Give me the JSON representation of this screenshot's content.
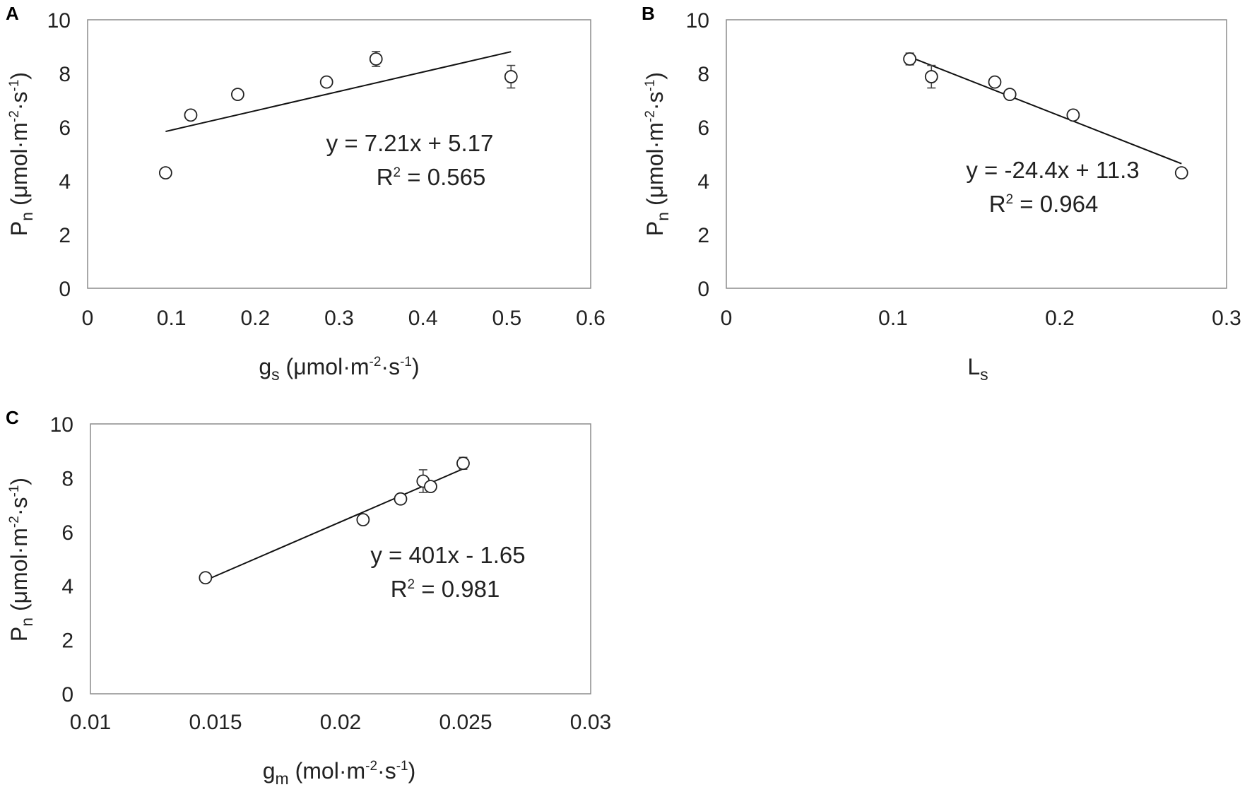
{
  "figure": {
    "panels": [
      {
        "letter": "A",
        "ylabel": {
          "main": "P",
          "sub": "n",
          "unit_a": " (μmol·m",
          "sup_a": "-2",
          "unit_b": "·s",
          "sup_b": "-1",
          "unit_c": ")"
        },
        "xlabel": {
          "main": "g",
          "sub": "s",
          "unit_a": " (μmol·m",
          "sup_a": "-2",
          "unit_b": "·s",
          "sup_b": "-1",
          "unit_c": ")"
        },
        "equation": "y = 7.21x + 5.17",
        "r2": {
          "pre": "R",
          "sup": "2",
          "post": " = 0.565"
        }
      },
      {
        "letter": "B",
        "ylabel": {
          "main": "P",
          "sub": "n",
          "unit_a": " (μmol·m",
          "sup_a": "-2",
          "unit_b": "·s",
          "sup_b": "-1",
          "unit_c": ")"
        },
        "xlabel": {
          "main": "L",
          "sub": "s",
          "unit_a": "",
          "sup_a": "",
          "unit_b": "",
          "sup_b": "",
          "unit_c": ""
        },
        "equation": "y = -24.4x + 11.3",
        "r2": {
          "pre": "R",
          "sup": "2",
          "post": " = 0.964"
        }
      },
      {
        "letter": "C",
        "ylabel": {
          "main": "P",
          "sub": "n",
          "unit_a": " (μmol·m",
          "sup_a": "-2",
          "unit_b": "·s",
          "sup_b": "-1",
          "unit_c": ")"
        },
        "xlabel": {
          "main": "g",
          "sub": "m",
          "unit_a": " (mol·m",
          "sup_a": "-2",
          "unit_b": "·s",
          "sup_b": "-1",
          "unit_c": ")"
        },
        "equation": "y = 401x - 1.65",
        "r2": {
          "pre": "R",
          "sup": "2",
          "post": " = 0.981"
        }
      }
    ]
  },
  "chart_data": [
    {
      "type": "scatter",
      "panel": "A",
      "xlim": [
        0,
        0.6
      ],
      "ylim": [
        0,
        10
      ],
      "xticks": [
        "0",
        "0.1",
        "0.2",
        "0.3",
        "0.4",
        "0.5",
        "0.6"
      ],
      "yticks": [
        "0",
        "2",
        "4",
        "6",
        "8",
        "10"
      ],
      "grid": false,
      "points": [
        {
          "x": 0.093,
          "y": 4.3,
          "yerr": 0.1,
          "xerr": 0.006
        },
        {
          "x": 0.123,
          "y": 6.45,
          "yerr": 0.15,
          "xerr": 0.003
        },
        {
          "x": 0.179,
          "y": 7.22,
          "yerr": 0.12,
          "xerr": 0.003
        },
        {
          "x": 0.285,
          "y": 7.68,
          "yerr": 0.1,
          "xerr": 0.003
        },
        {
          "x": 0.344,
          "y": 8.54,
          "yerr": 0.28,
          "xerr": 0.003
        },
        {
          "x": 0.505,
          "y": 7.88,
          "yerr": 0.42,
          "xerr": 0.003
        }
      ],
      "trendline": {
        "slope": 7.21,
        "intercept": 5.17,
        "x_range": [
          0.093,
          0.505
        ]
      }
    },
    {
      "type": "scatter",
      "panel": "B",
      "xlim": [
        0,
        0.3
      ],
      "ylim": [
        0,
        10
      ],
      "xticks": [
        "0",
        "0.1",
        "0.2",
        "0.3"
      ],
      "yticks": [
        "0",
        "2",
        "4",
        "6",
        "8",
        "10"
      ],
      "grid": false,
      "points": [
        {
          "x": 0.11,
          "y": 8.54,
          "yerr": 0.22,
          "xerr": 0.003
        },
        {
          "x": 0.123,
          "y": 7.88,
          "yerr": 0.42,
          "xerr": 0.002
        },
        {
          "x": 0.161,
          "y": 7.68,
          "yerr": 0.1,
          "xerr": 0.002
        },
        {
          "x": 0.17,
          "y": 7.22,
          "yerr": 0.12,
          "xerr": 0.002
        },
        {
          "x": 0.208,
          "y": 6.45,
          "yerr": 0.15,
          "xerr": 0.002
        },
        {
          "x": 0.273,
          "y": 4.3,
          "yerr": 0.1,
          "xerr": 0.003
        }
      ],
      "trendline": {
        "slope": -24.4,
        "intercept": 11.3,
        "x_range": [
          0.11,
          0.273
        ]
      }
    },
    {
      "type": "scatter",
      "panel": "C",
      "xlim": [
        0.01,
        0.03
      ],
      "ylim": [
        0,
        10
      ],
      "xticks": [
        "0.01",
        "0.015",
        "0.02",
        "0.025",
        "0.03"
      ],
      "yticks": [
        "0",
        "2",
        "4",
        "6",
        "8",
        "10"
      ],
      "grid": false,
      "points": [
        {
          "x": 0.0146,
          "y": 4.3,
          "yerr": 0.1,
          "xerr": 0.0002
        },
        {
          "x": 0.0209,
          "y": 6.45,
          "yerr": 0.15,
          "xerr": 0.0001
        },
        {
          "x": 0.0224,
          "y": 7.22,
          "yerr": 0.12,
          "xerr": 0.0001
        },
        {
          "x": 0.0233,
          "y": 7.88,
          "yerr": 0.42,
          "xerr": 0.0001
        },
        {
          "x": 0.0236,
          "y": 7.68,
          "yerr": 0.1,
          "xerr": 0.0001
        },
        {
          "x": 0.0249,
          "y": 8.54,
          "yerr": 0.22,
          "xerr": 0.0001
        }
      ],
      "trendline": {
        "slope": 401,
        "intercept": -1.65,
        "x_range": [
          0.0146,
          0.0249
        ]
      }
    }
  ]
}
